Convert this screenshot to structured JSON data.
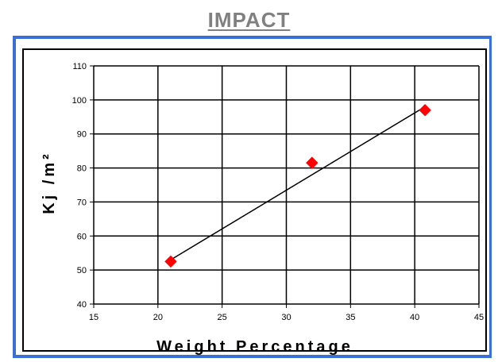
{
  "chart_data": {
    "type": "scatter",
    "title": "IMPACT",
    "xlabel": "Weight Percentage",
    "ylabel": "Kj /m²",
    "xlim": [
      15,
      45
    ],
    "ylim": [
      40,
      110
    ],
    "x_ticks": [
      "15",
      "20",
      "25",
      "30",
      "35",
      "40",
      "45"
    ],
    "y_ticks": [
      "40",
      "50",
      "60",
      "70",
      "80",
      "90",
      "100",
      "110"
    ],
    "grid": true,
    "series": [
      {
        "x": [
          21,
          32,
          40.8
        ],
        "y": [
          52.5,
          81.5,
          97
        ],
        "color": "#ff0000",
        "marker": "diamond"
      }
    ],
    "trendline": {
      "x": [
        21,
        40.8
      ],
      "y": [
        53,
        98
      ],
      "color": "#000000"
    }
  }
}
